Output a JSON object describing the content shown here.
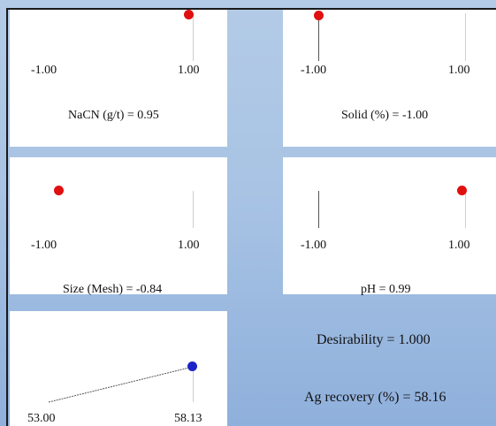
{
  "colors": {
    "factor_dot": "#e01010",
    "response_dot": "#1c24c8",
    "background": "#a8c3e4"
  },
  "panels": {
    "nacn": {
      "min_label": "-1.00",
      "max_label": "1.00",
      "caption": "NaCN (g/t) = 0.95",
      "value": 0.95
    },
    "solid": {
      "min_label": "-1.00",
      "max_label": "1.00",
      "caption": "Solid (%) = -1.00",
      "value": -1.0
    },
    "size": {
      "min_label": "-1.00",
      "max_label": "1.00",
      "caption": "Size (Mesh) = -0.84",
      "value": -0.84
    },
    "ph": {
      "min_label": "-1.00",
      "max_label": "1.00",
      "caption": "pH = 0.99",
      "value": 0.99
    },
    "response": {
      "min_label": "53.00",
      "max_label": "58.13",
      "value": 58.13
    }
  },
  "summary": {
    "desirability": "Desirability = 1.000",
    "ag_recovery": "Ag recovery (%) = 58.16"
  }
}
